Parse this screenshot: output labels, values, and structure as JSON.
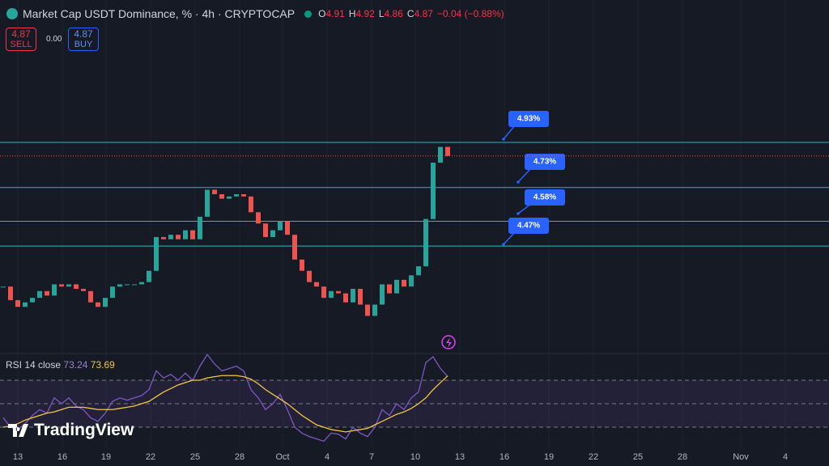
{
  "header": {
    "title": "Market Cap USDT Dominance, % · 4h · CRYPTOCAP",
    "ohlc": [
      [
        "O",
        "4.91"
      ],
      [
        "H",
        "4.92"
      ],
      [
        "L",
        "4.86"
      ],
      [
        "C",
        "4.87"
      ]
    ],
    "change": "−0.04 (−0.88%)"
  },
  "trade": {
    "sell_price": "4.87",
    "sell": "SELL",
    "spread": "0.00",
    "buy_price": "4.87",
    "buy": "BUY"
  },
  "brand": "TradingView",
  "chart_data": {
    "type": "candlestick",
    "up_color": "#26a69a",
    "down_color": "#ef5350",
    "closes": [
      4.29,
      4.23,
      4.2,
      4.22,
      4.24,
      4.27,
      4.25,
      4.3,
      4.29,
      4.3,
      4.28,
      4.27,
      4.22,
      4.2,
      4.24,
      4.29,
      4.3,
      4.3,
      4.3,
      4.31,
      4.36,
      4.51,
      4.5,
      4.52,
      4.5,
      4.54,
      4.5,
      4.6,
      4.72,
      4.7,
      4.68,
      4.69,
      4.7,
      4.69,
      4.62,
      4.57,
      4.51,
      4.54,
      4.58,
      4.52,
      4.41,
      4.36,
      4.31,
      4.29,
      4.24,
      4.27,
      4.26,
      4.22,
      4.28,
      4.21,
      4.16,
      4.21,
      4.3,
      4.26,
      4.32,
      4.29,
      4.34,
      4.38,
      4.59,
      4.84,
      4.91,
      4.87
    ],
    "ylim": [
      4.0,
      5.562
    ],
    "levels": [
      {
        "value": 4.93,
        "label": "4.93%"
      },
      {
        "value": 4.73,
        "label": "4.73%"
      },
      {
        "value": 4.58,
        "label": "4.58%"
      },
      {
        "value": 4.47,
        "label": "4.47%"
      }
    ],
    "level_color": "#2fb4c8",
    "xticks": [
      "13",
      "16",
      "19",
      "22",
      "25",
      "28",
      "Oct",
      "4",
      "7",
      "10",
      "13",
      "16",
      "19",
      "22",
      "25",
      "28",
      "Nov",
      "4"
    ],
    "rsi": {
      "title": "RSI 14 close",
      "value_label": "73.24",
      "ma_label": "73.69",
      "color": "#7e57c2",
      "ma_color": "#f5c542",
      "ylim": [
        18.3,
        90.7
      ],
      "bands": [
        30,
        50,
        70
      ],
      "values": [
        38,
        30,
        28,
        33,
        40,
        45,
        42,
        55,
        50,
        55,
        48,
        45,
        38,
        35,
        42,
        52,
        55,
        53,
        55,
        57,
        62,
        78,
        72,
        75,
        70,
        76,
        70,
        82,
        92,
        84,
        78,
        80,
        82,
        78,
        62,
        55,
        45,
        50,
        58,
        45,
        30,
        25,
        22,
        20,
        18,
        25,
        24,
        20,
        30,
        25,
        22,
        30,
        45,
        40,
        50,
        45,
        55,
        60,
        85,
        90,
        80,
        73.24
      ],
      "ma_values": [
        30,
        31,
        33,
        36,
        38,
        40,
        42,
        43,
        45,
        47,
        47,
        47,
        46,
        45,
        45,
        45,
        46,
        47,
        48,
        50,
        52,
        56,
        60,
        63,
        66,
        68,
        70,
        70,
        72,
        73,
        74,
        74,
        74,
        73,
        71,
        67,
        62,
        58,
        54,
        50,
        45,
        40,
        36,
        32,
        30,
        28,
        27,
        26,
        27,
        28,
        29,
        32,
        35,
        38,
        41,
        43,
        46,
        50,
        55,
        62,
        68,
        73.69
      ]
    }
  }
}
